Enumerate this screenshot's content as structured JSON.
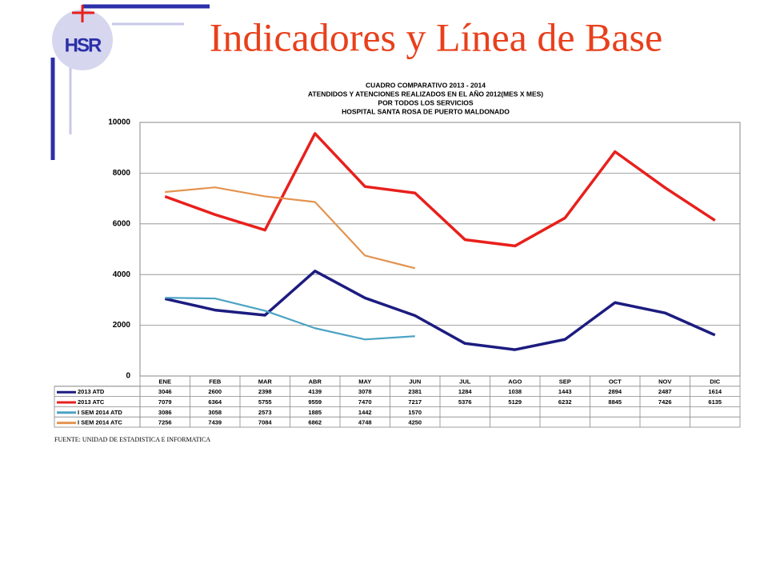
{
  "header": {
    "title": "Indicadores y Línea de Base",
    "logo_text": "HSR"
  },
  "chart_data": {
    "type": "line",
    "title": [
      "CUADRO COMPARATIVO  2013 - 2014",
      "ATENDIDOS Y ATENCIONES  REALIZADOS  EN  EL AÑO 2012(MES X MES)",
      "POR TODOS LOS SERVICIOS",
      "HOSPITAL  SANTA ROSA DE PUERTO MALDONADO"
    ],
    "categories": [
      "ENE",
      "FEB",
      "MAR",
      "ABR",
      "MAY",
      "JUN",
      "JUL",
      "AGO",
      "SEP",
      "OCT",
      "NOV",
      "DIC"
    ],
    "series": [
      {
        "name": "2013 ATD",
        "color": "#1c1c80",
        "values": [
          3046,
          2600,
          2398,
          4139,
          3078,
          2381,
          1284,
          1038,
          1443,
          2894,
          2487,
          1614
        ]
      },
      {
        "name": "2013 ATC",
        "color": "#e8201c",
        "values": [
          7079,
          6364,
          5755,
          9559,
          7470,
          7217,
          5376,
          5129,
          6232,
          8845,
          7426,
          6135
        ]
      },
      {
        "name": "I SEM 2014 ATD",
        "color": "#4ba3c3",
        "values": [
          3086,
          3058,
          2573,
          1885,
          1442,
          1570,
          null,
          null,
          null,
          null,
          null,
          null
        ]
      },
      {
        "name": "I SEM 2014 ATC",
        "color": "#e39450",
        "values": [
          7256,
          7439,
          7084,
          6862,
          4748,
          4250,
          null,
          null,
          null,
          null,
          null,
          null
        ]
      }
    ],
    "ylim": [
      0,
      10000
    ],
    "yticks": [
      0,
      2000,
      4000,
      6000,
      8000,
      10000
    ],
    "grid": true,
    "source": "FUENTE: UNIDAD DE ESTADISTICA E INFORMATICA"
  }
}
